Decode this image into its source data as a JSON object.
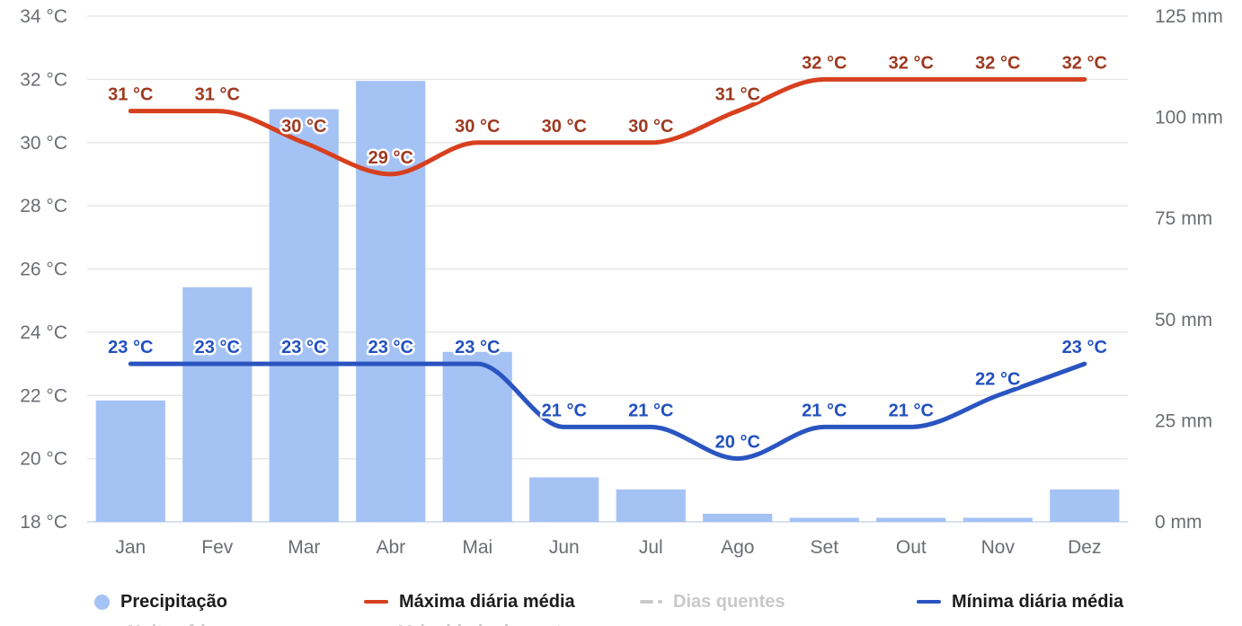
{
  "colors": {
    "background": "#ffffff",
    "grid": "#e6e6e6",
    "axis_line": "#ccd6eb",
    "axis_text": "#6a6e74",
    "legend_text": "#1c1c1c",
    "legend_disabled": "#c9c9c9"
  },
  "chart_data": {
    "type": "mixed-bar-line",
    "categories": [
      "Jan",
      "Fev",
      "Mar",
      "Abr",
      "Mai",
      "Jun",
      "Jul",
      "Ago",
      "Set",
      "Out",
      "Nov",
      "Dez"
    ],
    "left_axis": {
      "unit": "°C",
      "min": 18,
      "max": 34,
      "step": 2,
      "labels": [
        "34 °C",
        "32 °C",
        "30 °C",
        "28 °C",
        "26 °C",
        "24 °C",
        "22 °C",
        "20 °C",
        "18 °C"
      ]
    },
    "right_axis": {
      "unit": "mm",
      "min": 0,
      "max": 125,
      "step": 25,
      "labels": [
        "125 mm",
        "100 mm",
        "75 mm",
        "50 mm",
        "25 mm",
        "0 mm"
      ]
    },
    "grid": true,
    "legend_position": "bottom",
    "series": [
      {
        "name": "Precipitação",
        "type": "bar",
        "axis": "right",
        "unit": "mm",
        "color": "#a5c2f5",
        "values": [
          30,
          58,
          102,
          109,
          42,
          11,
          8,
          2,
          1,
          1,
          1,
          8
        ]
      },
      {
        "name": "Máxima diária média",
        "type": "line",
        "axis": "left",
        "unit": "°C",
        "color": "#d7401e",
        "label_color": "#9e3a20",
        "values": [
          31,
          31,
          30,
          29,
          30,
          30,
          30,
          31,
          32,
          32,
          32,
          32
        ],
        "point_labels": [
          "31 °C",
          "31 °C",
          "30 °C",
          "29 °C",
          "30 °C",
          "30 °C",
          "30 °C",
          "31 °C",
          "32 °C",
          "32 °C",
          "32 °C",
          "32 °C"
        ]
      },
      {
        "name": "Mínima diária média",
        "type": "line",
        "axis": "left",
        "unit": "°C",
        "color": "#2a55c0",
        "label_color": "#2150bf",
        "values": [
          23,
          23,
          23,
          23,
          23,
          21,
          21,
          20,
          21,
          21,
          22,
          23
        ],
        "point_labels": [
          "23 °C",
          "23 °C",
          "23 °C",
          "23 °C",
          "23 °C",
          "21 °C",
          "21 °C",
          "20 °C",
          "21 °C",
          "21 °C",
          "22 °C",
          "23 °C"
        ]
      }
    ],
    "legend": {
      "rows": [
        {
          "items": [
            {
              "label": "Precipitação",
              "marker": "circle",
              "color": "#a5c2f5",
              "disabled": false
            },
            {
              "label": "Máxima diária média",
              "marker": "line",
              "color": "#d7401e",
              "disabled": false
            },
            {
              "label": "Dias quentes",
              "marker": "dash-dot",
              "color": "#c9c9c9",
              "disabled": true
            },
            {
              "label": "Mínima diária média",
              "marker": "line",
              "color": "#2a55c0",
              "disabled": false
            }
          ]
        },
        {
          "items": [
            {
              "label": "Noites frias",
              "marker": "dash-dot",
              "color": "#c9c9c9",
              "disabled": true
            },
            {
              "label": "Velocidade do vento",
              "marker": "line",
              "color": "#c9c9c9",
              "disabled": true
            }
          ]
        }
      ]
    }
  }
}
